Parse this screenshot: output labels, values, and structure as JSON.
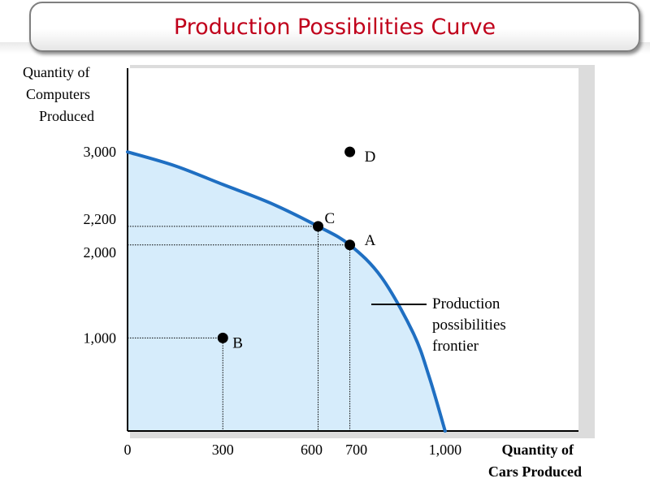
{
  "title": "Production Possibilities Curve",
  "colors": {
    "title": "#c0001b",
    "curve": "#1f6fc2",
    "fill": "#d6ecfb",
    "point": "#000000",
    "guide": "#000000"
  },
  "chart_data": {
    "type": "area",
    "title": "Production Possibilities Curve",
    "ylabel_lines": [
      "Quantity of",
      "Computers",
      "Produced"
    ],
    "xlabel_lines": [
      "Quantity of",
      "Cars Produced"
    ],
    "xlim": [
      0,
      1420
    ],
    "ylim": [
      0,
      3900
    ],
    "xticks": [
      {
        "value": 0,
        "label": "0"
      },
      {
        "value": 300,
        "label": "300"
      },
      {
        "value": 600,
        "label": "600"
      },
      {
        "value": 700,
        "label": "700"
      },
      {
        "value": 1000,
        "label": "1,000"
      }
    ],
    "yticks": [
      {
        "value": 1000,
        "label": "1,000"
      },
      {
        "value": 2000,
        "label": "2,000"
      },
      {
        "value": 2200,
        "label": "2,200"
      },
      {
        "value": 3000,
        "label": "3,000"
      }
    ],
    "series": [
      {
        "name": "Production possibilities frontier",
        "x": [
          0,
          150,
          300,
          450,
          600,
          700,
          800,
          900,
          950,
          1000
        ],
        "y": [
          3000,
          2850,
          2650,
          2450,
          2200,
          2000,
          1650,
          1050,
          580,
          0
        ]
      }
    ],
    "points": [
      {
        "label": "A",
        "x": 700,
        "y": 2000
      },
      {
        "label": "B",
        "x": 300,
        "y": 1000
      },
      {
        "label": "C",
        "x": 600,
        "y": 2200
      },
      {
        "label": "D",
        "x": 700,
        "y": 3000
      }
    ],
    "annotation": [
      "Production",
      "possibilities",
      "frontier"
    ],
    "grid": false,
    "legend": "none"
  }
}
